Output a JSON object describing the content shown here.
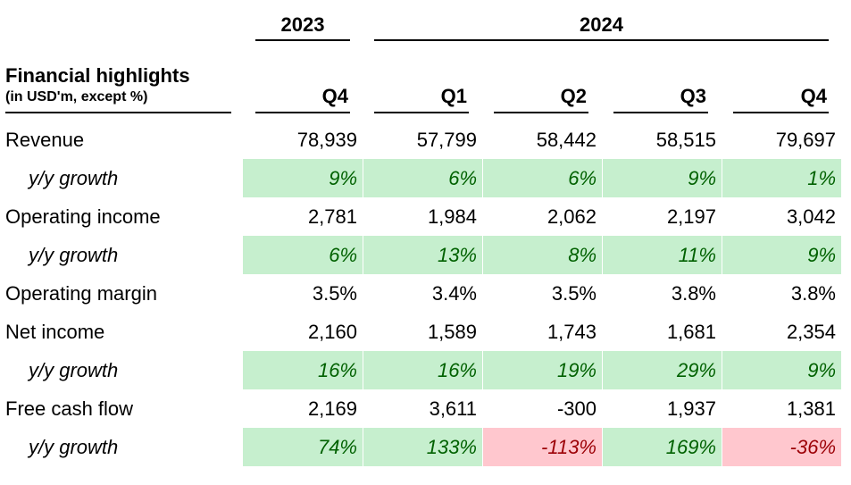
{
  "years": [
    {
      "label": "2023"
    },
    {
      "label": "2024"
    }
  ],
  "title": "Financial highlights",
  "subtitle": "(in USD'm, except %)",
  "quarters": [
    "Q4",
    "Q1",
    "Q2",
    "Q3",
    "Q4"
  ],
  "rows": [
    {
      "label": "Revenue",
      "type": "value",
      "values": [
        "78,939",
        "57,799",
        "58,442",
        "58,515",
        "79,697"
      ]
    },
    {
      "label": "y/y growth",
      "type": "growth",
      "values": [
        "9%",
        "6%",
        "6%",
        "9%",
        "1%"
      ],
      "signs": [
        "pos",
        "pos",
        "pos",
        "pos",
        "pos"
      ]
    },
    {
      "label": "Operating income",
      "type": "value",
      "values": [
        "2,781",
        "1,984",
        "2,062",
        "2,197",
        "3,042"
      ]
    },
    {
      "label": "y/y growth",
      "type": "growth",
      "values": [
        "6%",
        "13%",
        "8%",
        "11%",
        "9%"
      ],
      "signs": [
        "pos",
        "pos",
        "pos",
        "pos",
        "pos"
      ]
    },
    {
      "label": "Operating margin",
      "type": "value",
      "values": [
        "3.5%",
        "3.4%",
        "3.5%",
        "3.8%",
        "3.8%"
      ]
    },
    {
      "label": "Net income",
      "type": "value",
      "values": [
        "2,160",
        "1,589",
        "1,743",
        "1,681",
        "2,354"
      ]
    },
    {
      "label": "y/y growth",
      "type": "growth",
      "values": [
        "16%",
        "16%",
        "19%",
        "29%",
        "9%"
      ],
      "signs": [
        "pos",
        "pos",
        "pos",
        "pos",
        "pos"
      ]
    },
    {
      "label": "Free cash flow",
      "type": "value",
      "values": [
        "2,169",
        "3,611",
        "-300",
        "1,937",
        "1,381"
      ]
    },
    {
      "label": "y/y growth",
      "type": "growth",
      "values": [
        "74%",
        "133%",
        "-113%",
        "169%",
        "-36%"
      ],
      "signs": [
        "pos",
        "pos",
        "neg",
        "pos",
        "neg"
      ]
    }
  ],
  "colors": {
    "positive_fill": "#c6efce",
    "positive_text": "#006100",
    "negative_fill": "#ffc7ce",
    "negative_text": "#9c0006"
  }
}
